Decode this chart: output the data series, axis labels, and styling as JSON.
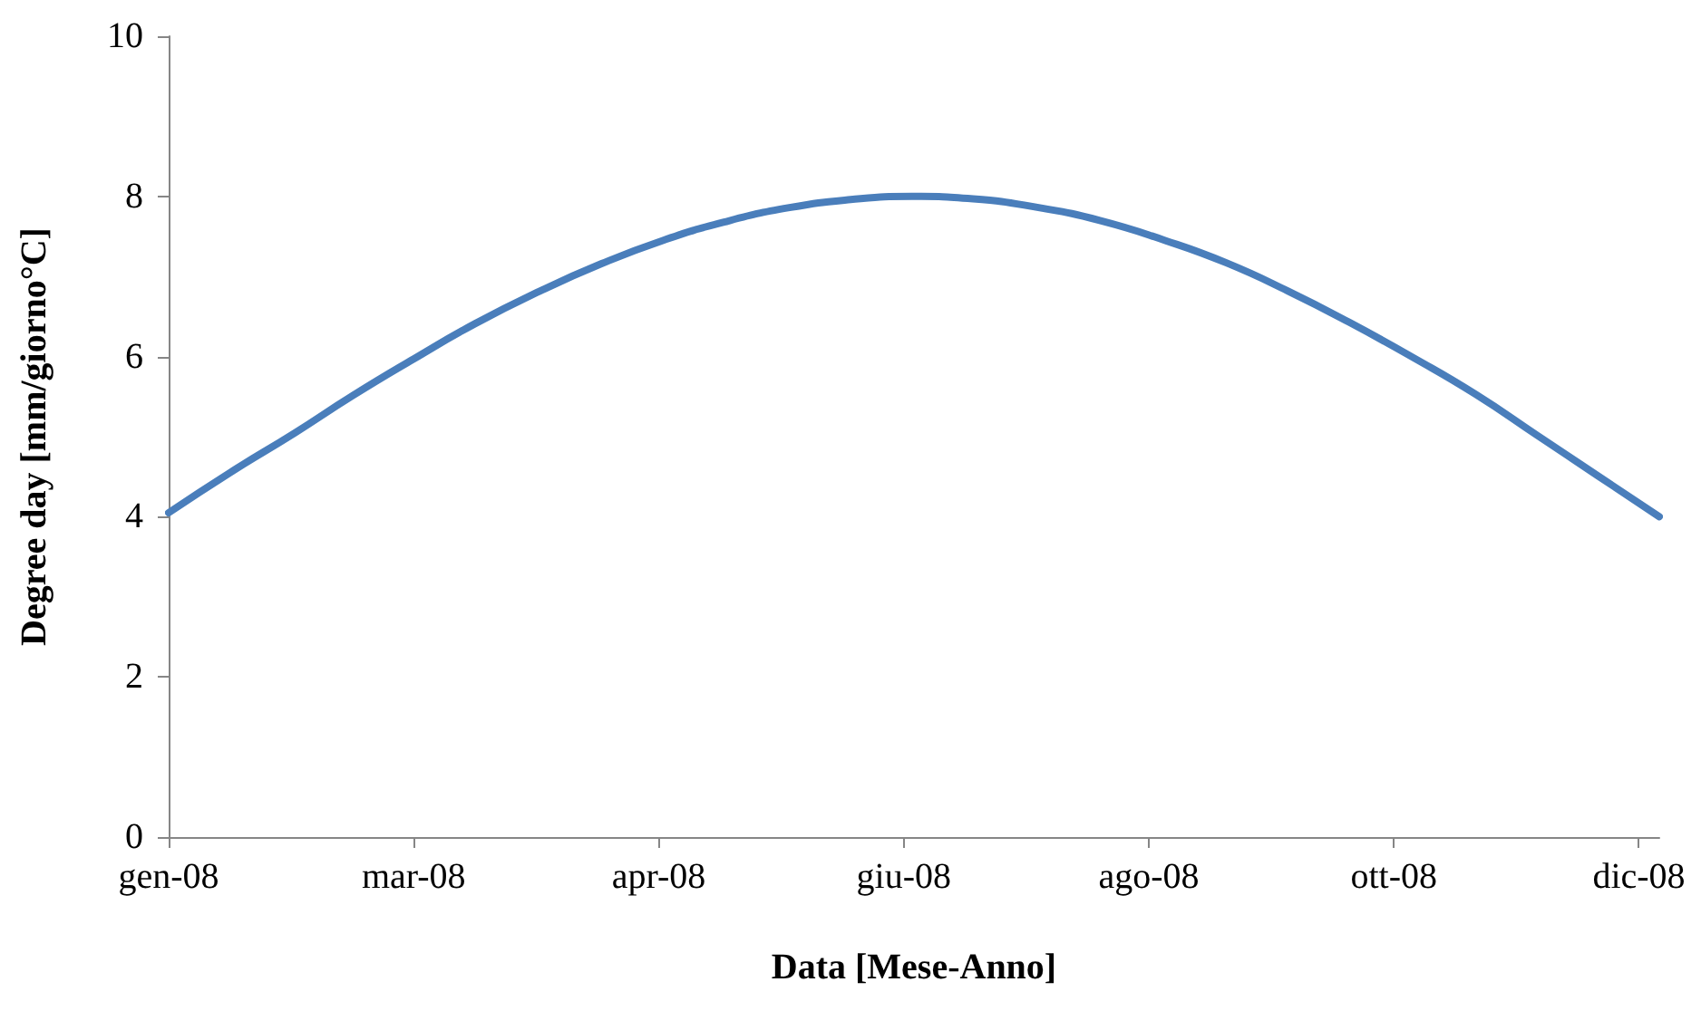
{
  "chart_data": {
    "type": "line",
    "xlabel": "Data [Mese-Anno]",
    "ylabel": "Degree day [mm/giorno°C]",
    "x": [
      "2008-01-01",
      "2008-01-16",
      "2008-02-01",
      "2008-02-15",
      "2008-03-01",
      "2008-03-16",
      "2008-04-01",
      "2008-04-16",
      "2008-05-01",
      "2008-05-16",
      "2008-06-01",
      "2008-06-16",
      "2008-07-01",
      "2008-07-16",
      "2008-08-01",
      "2008-08-16",
      "2008-09-01",
      "2008-09-16",
      "2008-10-01",
      "2008-10-16",
      "2008-11-01",
      "2008-11-16",
      "2008-12-01",
      "2008-12-16",
      "2008-12-31"
    ],
    "series": [
      {
        "color": "#4a7ebb",
        "values": [
          4.05,
          4.55,
          5.05,
          5.51,
          5.97,
          6.41,
          6.82,
          7.16,
          7.45,
          7.68,
          7.86,
          7.96,
          8.0,
          7.97,
          7.86,
          7.7,
          7.45,
          7.17,
          6.82,
          6.43,
          5.98,
          5.53,
          5.02,
          4.51,
          4.0
        ]
      }
    ],
    "xlim": [
      "2008-01-01",
      "2008-12-31"
    ],
    "xticks": [
      {
        "value": "2008-01-01",
        "label": "gen-08"
      },
      {
        "value": "2008-03-01",
        "label": "mar-08"
      },
      {
        "value": "2008-04-30",
        "label": "apr-08"
      },
      {
        "value": "2008-06-29",
        "label": "giu-08"
      },
      {
        "value": "2008-08-28",
        "label": "ago-08"
      },
      {
        "value": "2008-10-27",
        "label": "ott-08"
      },
      {
        "value": "2008-12-26",
        "label": "dic-08"
      }
    ],
    "ylim": [
      0,
      10
    ],
    "yticks": [
      0,
      2,
      4,
      6,
      8,
      10
    ],
    "grid": false,
    "marker": "none",
    "line_style": "solid"
  }
}
